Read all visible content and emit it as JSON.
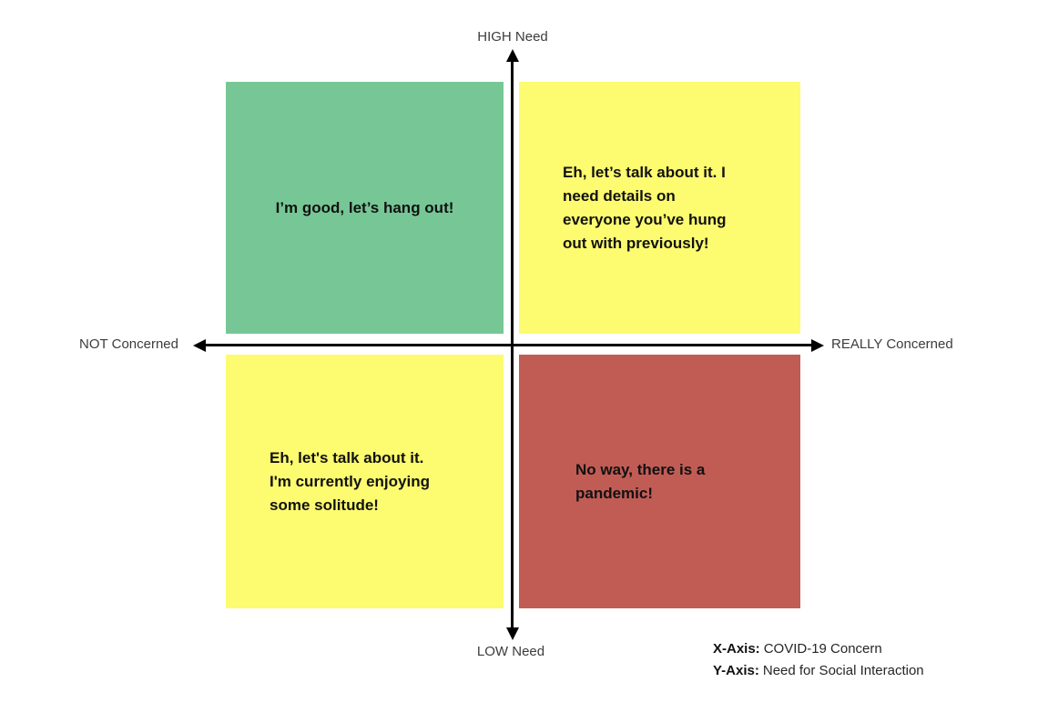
{
  "axes": {
    "top_label": "HIGH Need",
    "bottom_label": "LOW Need",
    "left_label": "NOT Concerned",
    "right_label": "REALLY Concerned"
  },
  "quadrants": {
    "top_left": {
      "text": "I’m good, let’s hang out!",
      "color": "#76C795"
    },
    "top_right": {
      "text": "Eh, let’s talk about it. I\nneed details on\neveryone you’ve hung\nout with previously!",
      "color": "#FDFB6F"
    },
    "bottom_left": {
      "text": "Eh, let's talk about it.\nI'm currently enjoying\nsome solitude!",
      "color": "#FDFB6F"
    },
    "bottom_right": {
      "text": "No way, there is a\npandemic!",
      "color": "#C15C55"
    }
  },
  "legend": {
    "x_key": "X-Axis:",
    "x_value": "COVID-19 Concern",
    "y_key": "Y-Axis:",
    "y_value": "Need for Social Interaction"
  },
  "colors": {
    "axis": "#000000",
    "axis_label_text": "#3C3C3C",
    "quadrant_text": "#111111"
  }
}
